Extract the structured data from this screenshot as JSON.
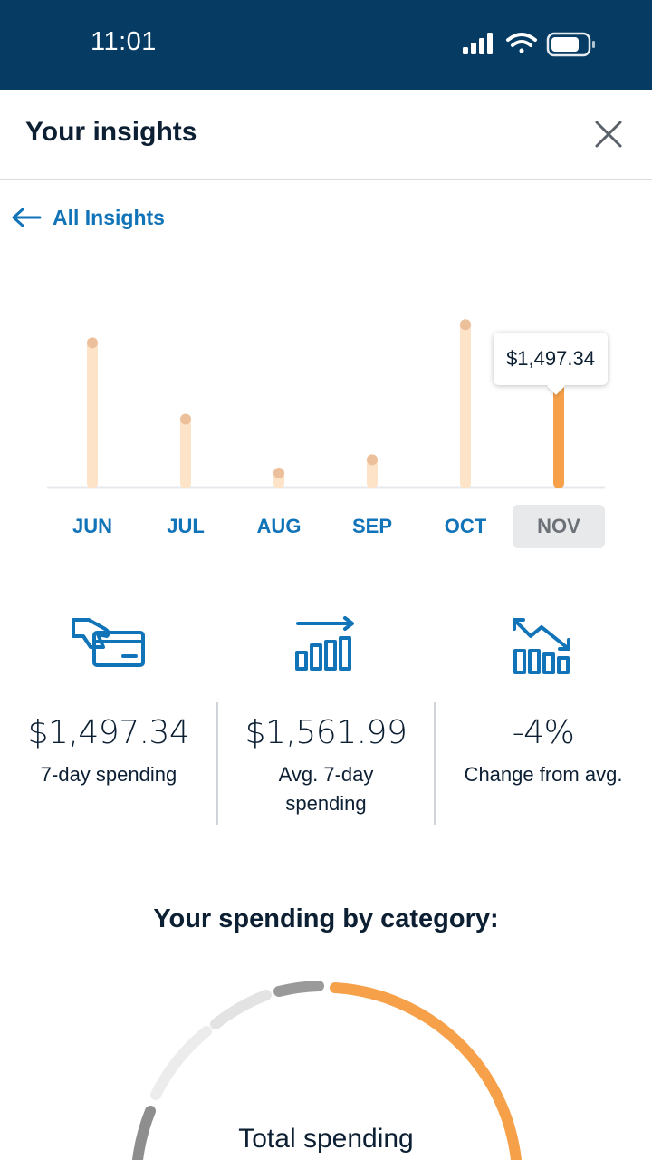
{
  "status_bar": {
    "time": "11:01",
    "icons": [
      "signal-icon",
      "wifi-icon",
      "battery-icon"
    ]
  },
  "header": {
    "title": "Your insights",
    "close_icon": "close-icon"
  },
  "navigation": {
    "back_label": "All Insights",
    "back_icon": "arrow-left-icon"
  },
  "chart_data": {
    "type": "bar",
    "title": "",
    "categories": [
      "JUN",
      "JUL",
      "AUG",
      "SEP",
      "OCT",
      "NOV"
    ],
    "values": [
      1690,
      770,
      120,
      280,
      1910,
      1497.34
    ],
    "selected": "NOV",
    "tooltip": "$1,497.34",
    "ylim": [
      0,
      2000
    ],
    "colors": {
      "muted": "#fde3c8",
      "muted_dot": "#edc09c",
      "active": "#f6a14a",
      "active_dot": "#a4652a"
    }
  },
  "stats": [
    {
      "icon": "card-payment-icon",
      "value": "$1,497.34",
      "label": "7-day spending"
    },
    {
      "icon": "bar-trend-up-icon",
      "value": "$1,561.99",
      "label": "Avg. 7-day spending"
    },
    {
      "icon": "bar-trend-down-icon",
      "value": "-4%",
      "label": "Change from avg."
    }
  ],
  "category_section": {
    "title": "Your spending by category:",
    "center_label": "Total spending"
  },
  "colors": {
    "brand_navy": "#063c63",
    "link_blue": "#1173b8",
    "orange": "#f6a14a"
  }
}
